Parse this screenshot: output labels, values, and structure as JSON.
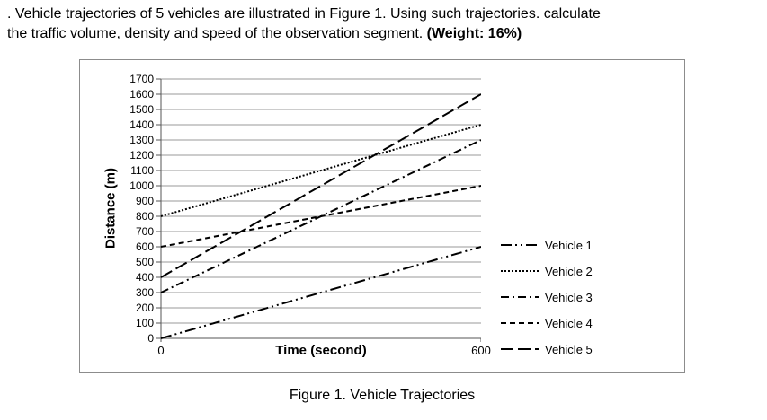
{
  "question": {
    "line1": ". Vehicle trajectories of 5 vehicles are illustrated in Figure 1. Using such trajectories. calculate",
    "line2": "the traffic volume, density and speed of the observation segment. ",
    "weight": "(Weight: 16%)"
  },
  "figure": {
    "caption": "Figure 1. Vehicle Trajectories"
  },
  "chart_data": {
    "type": "line",
    "title": "",
    "xlabel": "Time (second)",
    "ylabel": "Distance (m)",
    "xlim": [
      0,
      600
    ],
    "ylim": [
      0,
      1700
    ],
    "xticks": [
      0,
      600
    ],
    "yticks": [
      0,
      100,
      200,
      300,
      400,
      500,
      600,
      700,
      800,
      900,
      1000,
      1100,
      1200,
      1300,
      1400,
      1500,
      1600,
      1700
    ],
    "grid": "horizontal",
    "legend_position": "right",
    "line_color": "#000000",
    "gridline_color": "#9a9a9a",
    "series": [
      {
        "name": "Vehicle 1",
        "style": "dash-dot-dot",
        "points": [
          [
            0,
            0
          ],
          [
            600,
            600
          ]
        ]
      },
      {
        "name": "Vehicle 2",
        "style": "dotted",
        "points": [
          [
            0,
            800
          ],
          [
            600,
            1400
          ]
        ]
      },
      {
        "name": "Vehicle 3",
        "style": "dash-dot",
        "points": [
          [
            0,
            300
          ],
          [
            600,
            1300
          ]
        ]
      },
      {
        "name": "Vehicle 4",
        "style": "dashed",
        "points": [
          [
            0,
            600
          ],
          [
            600,
            1000
          ]
        ]
      },
      {
        "name": "Vehicle 5",
        "style": "long-dash",
        "points": [
          [
            0,
            400
          ],
          [
            600,
            1600
          ]
        ]
      }
    ]
  }
}
